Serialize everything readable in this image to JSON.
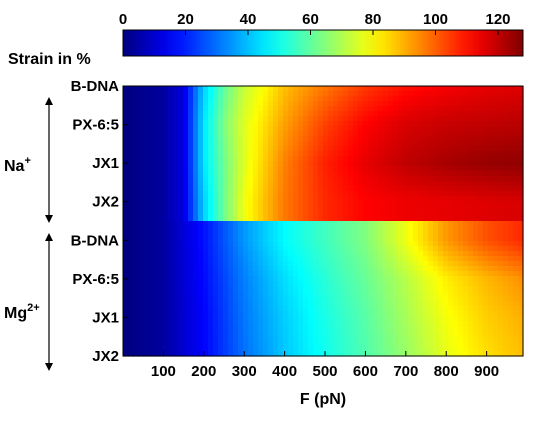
{
  "chart_data": {
    "type": "heatmap",
    "title": "",
    "colorbar": {
      "label": "Strain in %",
      "ticks": [
        0,
        20,
        40,
        60,
        80,
        100,
        120
      ],
      "range": [
        0,
        128
      ],
      "colormap": "jet"
    },
    "xlabel": "F (pN)",
    "xlim": [
      0,
      990
    ],
    "x_ticks": [
      100,
      200,
      300,
      400,
      500,
      600,
      700,
      800,
      900
    ],
    "y_categories": [
      "B-DNA",
      "PX-6:5",
      "JX1",
      "JX2",
      "B-DNA",
      "PX-6:5",
      "JX1",
      "JX2"
    ],
    "groups": [
      {
        "ion": "Na",
        "charge": "+",
        "rows": [
          "B-DNA",
          "PX-6:5",
          "JX1",
          "JX2"
        ]
      },
      {
        "ion": "Mg",
        "charge": "2+",
        "rows": [
          "B-DNA",
          "PX-6:5",
          "JX1",
          "JX2"
        ]
      }
    ],
    "rows": [
      {
        "name": "B-DNA",
        "group": "Na+",
        "points": [
          [
            0,
            0
          ],
          [
            100,
            4
          ],
          [
            150,
            12
          ],
          [
            200,
            42
          ],
          [
            250,
            60
          ],
          [
            300,
            73
          ],
          [
            350,
            80
          ],
          [
            400,
            88
          ],
          [
            500,
            97
          ],
          [
            600,
            105
          ],
          [
            700,
            110
          ],
          [
            800,
            113
          ],
          [
            900,
            115
          ],
          [
            990,
            116
          ]
        ]
      },
      {
        "name": "PX-6:5",
        "group": "Na+",
        "points": [
          [
            0,
            0
          ],
          [
            100,
            4
          ],
          [
            150,
            12
          ],
          [
            200,
            45
          ],
          [
            250,
            64
          ],
          [
            300,
            76
          ],
          [
            350,
            84
          ],
          [
            400,
            92
          ],
          [
            500,
            104
          ],
          [
            600,
            112
          ],
          [
            700,
            117
          ],
          [
            800,
            119
          ],
          [
            900,
            120
          ],
          [
            990,
            121
          ]
        ]
      },
      {
        "name": "JX1",
        "group": "Na+",
        "points": [
          [
            0,
            0
          ],
          [
            100,
            4
          ],
          [
            150,
            12
          ],
          [
            200,
            45
          ],
          [
            250,
            62
          ],
          [
            300,
            76
          ],
          [
            350,
            86
          ],
          [
            400,
            96
          ],
          [
            500,
            108
          ],
          [
            600,
            115
          ],
          [
            700,
            120
          ],
          [
            800,
            123
          ],
          [
            900,
            125
          ],
          [
            990,
            126
          ]
        ]
      },
      {
        "name": "JX2",
        "group": "Na+",
        "points": [
          [
            0,
            0
          ],
          [
            100,
            4
          ],
          [
            150,
            12
          ],
          [
            200,
            42
          ],
          [
            250,
            62
          ],
          [
            300,
            78
          ],
          [
            350,
            88
          ],
          [
            400,
            97
          ],
          [
            500,
            107
          ],
          [
            600,
            112
          ],
          [
            700,
            114
          ],
          [
            800,
            115
          ],
          [
            900,
            116
          ],
          [
            990,
            117
          ]
        ]
      },
      {
        "name": "B-DNA",
        "group": "Mg2+",
        "points": [
          [
            0,
            0
          ],
          [
            100,
            4
          ],
          [
            200,
            18
          ],
          [
            300,
            35
          ],
          [
            400,
            48
          ],
          [
            500,
            56
          ],
          [
            600,
            64
          ],
          [
            700,
            78
          ],
          [
            800,
            93
          ],
          [
            900,
            102
          ],
          [
            990,
            107
          ]
        ]
      },
      {
        "name": "PX-6:5",
        "group": "Mg2+",
        "points": [
          [
            0,
            0
          ],
          [
            100,
            4
          ],
          [
            200,
            17
          ],
          [
            300,
            32
          ],
          [
            400,
            44
          ],
          [
            500,
            53
          ],
          [
            600,
            61
          ],
          [
            700,
            71
          ],
          [
            800,
            82
          ],
          [
            900,
            89
          ],
          [
            990,
            94
          ]
        ]
      },
      {
        "name": "JX1",
        "group": "Mg2+",
        "points": [
          [
            0,
            0
          ],
          [
            100,
            4
          ],
          [
            200,
            16
          ],
          [
            300,
            31
          ],
          [
            400,
            42
          ],
          [
            500,
            51
          ],
          [
            600,
            59
          ],
          [
            700,
            69
          ],
          [
            800,
            79
          ],
          [
            900,
            86
          ],
          [
            990,
            90
          ]
        ]
      },
      {
        "name": "JX2",
        "group": "Mg2+",
        "points": [
          [
            0,
            0
          ],
          [
            100,
            4
          ],
          [
            200,
            16
          ],
          [
            300,
            30
          ],
          [
            400,
            41
          ],
          [
            500,
            50
          ],
          [
            600,
            58
          ],
          [
            700,
            67
          ],
          [
            800,
            77
          ],
          [
            900,
            84
          ],
          [
            990,
            88
          ]
        ]
      }
    ]
  }
}
